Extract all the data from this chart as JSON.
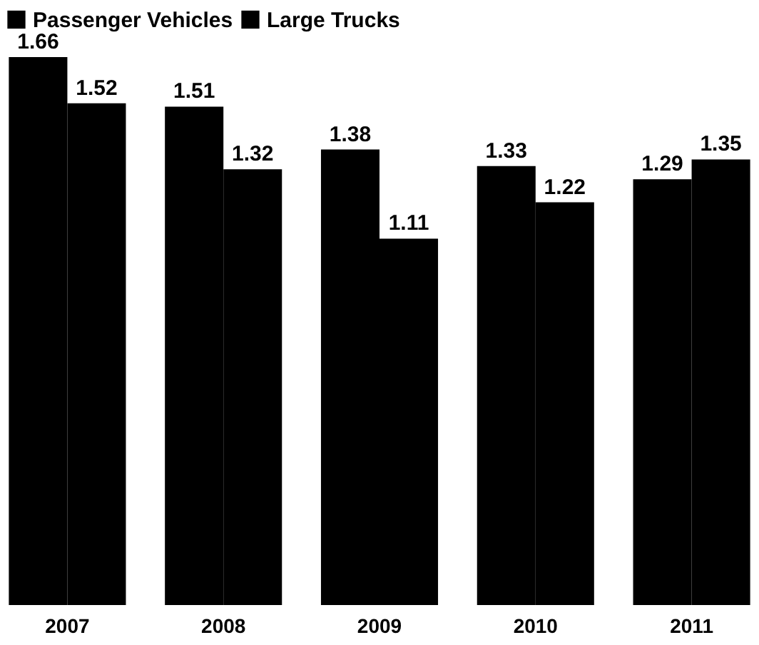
{
  "chart_data": {
    "type": "bar",
    "categories": [
      "2007",
      "2008",
      "2009",
      "2010",
      "2011"
    ],
    "series": [
      {
        "name": "Passenger Vehicles",
        "color": "#000000",
        "values": [
          1.66,
          1.51,
          1.38,
          1.33,
          1.29
        ]
      },
      {
        "name": "Large Trucks",
        "color": "#000000",
        "values": [
          1.52,
          1.32,
          1.11,
          1.22,
          1.35
        ]
      }
    ],
    "data_labels": true,
    "legend": "top",
    "grid": false,
    "tick_labels": "x"
  }
}
